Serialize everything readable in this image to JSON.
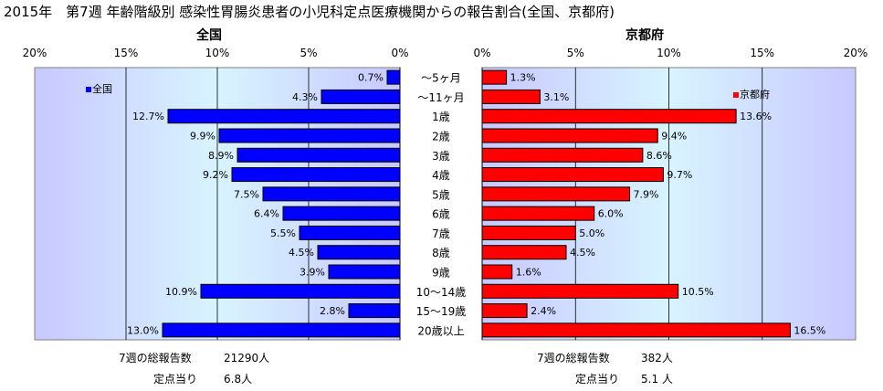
{
  "title": "2015年　第7週 年齢階級別 感染性胃腸炎患者の小児科定点医療機関からの報告割合(全国、京都府)",
  "colors": {
    "national": "#0000ff",
    "kyoto": "#ff0000",
    "plot_bg": "#c0c0ff",
    "grid": "#000000"
  },
  "chart_data": [
    {
      "type": "bar",
      "title": "全国",
      "orientation": "horizontal",
      "direction": "right-to-left",
      "xlim": [
        0,
        20
      ],
      "ticks": [
        "20%",
        "15%",
        "10%",
        "5%",
        "0%"
      ],
      "tick_values": [
        20,
        15,
        10,
        5,
        0
      ],
      "legend": "全国",
      "legend_position": "top-left",
      "categories": [
        "～5ヶ月",
        "～11ヶ月",
        "1歳",
        "2歳",
        "3歳",
        "4歳",
        "5歳",
        "6歳",
        "7歳",
        "8歳",
        "9歳",
        "10～14歳",
        "15～19歳",
        "20歳以上"
      ],
      "series": [
        {
          "name": "全国",
          "values": [
            0.7,
            4.3,
            12.7,
            9.9,
            8.9,
            9.2,
            7.5,
            6.4,
            5.5,
            4.5,
            3.9,
            10.9,
            2.8,
            13.0
          ]
        }
      ],
      "labels": [
        "0.7%",
        "4.3%",
        "12.7%",
        "9.9%",
        "8.9%",
        "9.2%",
        "7.5%",
        "6.4%",
        "5.5%",
        "4.5%",
        "3.9%",
        "10.9%",
        "2.8%",
        "13.0%"
      ]
    },
    {
      "type": "bar",
      "title": "京都府",
      "orientation": "horizontal",
      "direction": "left-to-right",
      "xlim": [
        0,
        20
      ],
      "ticks": [
        "0%",
        "5%",
        "10%",
        "15%",
        "20%"
      ],
      "tick_values": [
        0,
        5,
        10,
        15,
        20
      ],
      "legend": "京都府",
      "legend_position": "top-right",
      "categories": [
        "～5ヶ月",
        "～11ヶ月",
        "1歳",
        "2歳",
        "3歳",
        "4歳",
        "5歳",
        "6歳",
        "7歳",
        "8歳",
        "9歳",
        "10～14歳",
        "15～19歳",
        "20歳以上"
      ],
      "series": [
        {
          "name": "京都府",
          "values": [
            1.3,
            3.1,
            13.6,
            9.4,
            8.6,
            9.7,
            7.9,
            6.0,
            5.0,
            4.5,
            1.6,
            10.5,
            2.4,
            16.5
          ]
        }
      ],
      "labels": [
        "1.3%",
        "3.1%",
        "13.6%",
        "9.4%",
        "8.6%",
        "9.7%",
        "7.9%",
        "6.0%",
        "5.0%",
        "4.5%",
        "1.6%",
        "10.5%",
        "2.4%",
        "16.5%"
      ]
    }
  ],
  "summary": {
    "national": {
      "total_label": "7週の総報告数",
      "total_value": "21290人",
      "per_label": "定点当り",
      "per_value": "6.8人"
    },
    "kyoto": {
      "total_label": "7週の総報告数",
      "total_value": "382人",
      "per_label": "定点当り",
      "per_value": "5.1 人"
    }
  }
}
